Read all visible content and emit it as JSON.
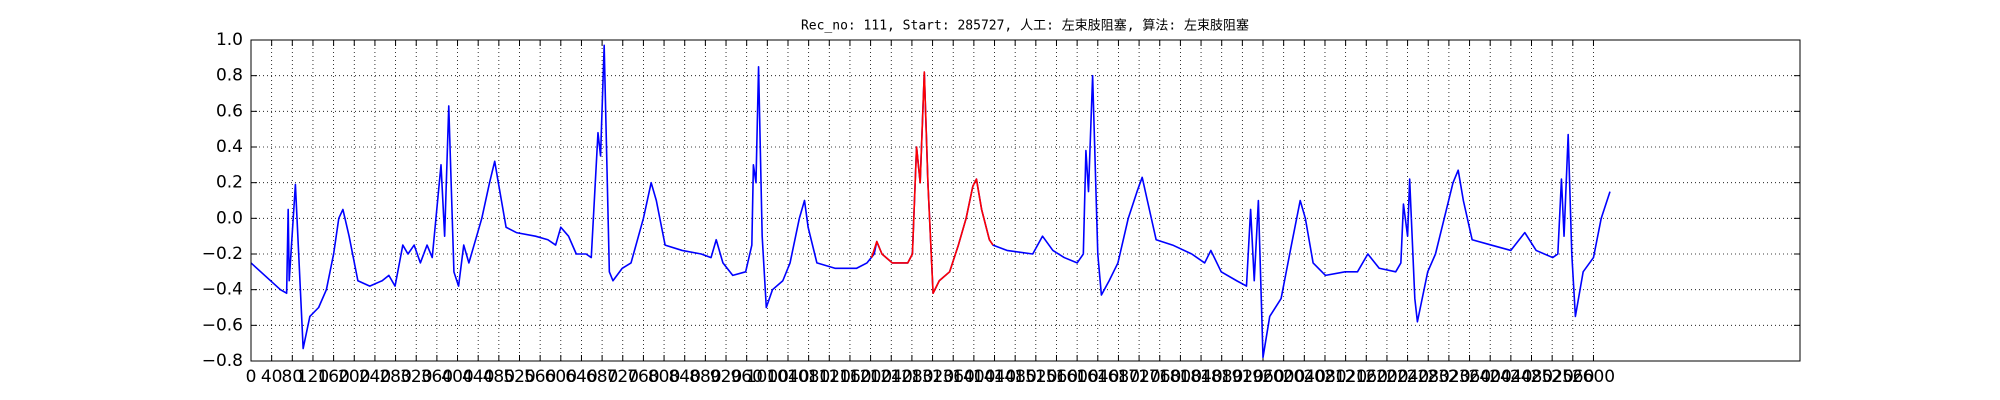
{
  "chart_data": {
    "type": "line",
    "title": "Rec_no: 111, Start: 285727, 人工: 左束肢阻塞, 算法: 左束肢阻塞",
    "xlim": [
      0,
      3000
    ],
    "ylim": [
      -0.8,
      1.0
    ],
    "xticks": [
      0,
      40,
      80,
      120,
      160,
      200,
      240,
      280,
      320,
      360,
      400,
      440,
      480,
      520,
      560,
      600,
      640,
      680,
      720,
      760,
      800,
      840,
      880,
      920,
      960,
      1000,
      1040,
      1080,
      1120,
      1160,
      1200,
      1240,
      1280,
      1320,
      1360,
      1400,
      1440,
      1480,
      1520,
      1560,
      1600,
      1640,
      1680,
      1720,
      1760,
      1800,
      1840,
      1880,
      1920,
      1960,
      2000,
      2040,
      2080,
      2120,
      2160,
      2200,
      2240,
      2280,
      2320,
      2360,
      2400,
      2440,
      2480,
      2520,
      2560,
      2600
    ],
    "yticks": [
      {
        "value": -0.8,
        "label": "−0.8"
      },
      {
        "value": -0.6,
        "label": "−0.6"
      },
      {
        "value": -0.4,
        "label": "−0.4"
      },
      {
        "value": -0.2,
        "label": "−0.2"
      },
      {
        "value": 0,
        "label": "0.0"
      },
      0.2,
      0.4,
      0.6,
      0.8,
      {
        "value": 1,
        "label": "1.0"
      }
    ],
    "grid": true,
    "series": [
      {
        "color": "#0000ff",
        "x": [
          0,
          57,
          69,
          72,
          74,
          86,
          101,
          114,
          131,
          146,
          160,
          170,
          178,
          190,
          207,
          230,
          254,
          267,
          279,
          294,
          304,
          316,
          328,
          341,
          351,
          368,
          375,
          383,
          393,
          402,
          412,
          422,
          437,
          447,
          462,
          472,
          479,
          494,
          514,
          551,
          575,
          590,
          600,
          615,
          630,
          649,
          659,
          672,
          677,
          684,
          694,
          701,
          719,
          736,
          760,
          775,
          785,
          802,
          835,
          872,
          891,
          901,
          914,
          933,
          958,
          970,
          973,
          978,
          983,
          990,
          998,
          1010,
          1030,
          1044,
          1062,
          1072,
          1079,
          1096,
          1131,
          1173,
          1193,
          1207,
          1212,
          1222,
          1242,
          1272,
          1281,
          1289,
          1296,
          1304,
          1311,
          1321,
          1333,
          1353,
          1370,
          1385,
          1398,
          1405,
          1415,
          1430,
          1437,
          1464,
          1514,
          1533,
          1553,
          1575,
          1600,
          1612,
          1617,
          1622,
          1630,
          1640,
          1647,
          1662,
          1679,
          1699,
          1716,
          1726,
          1736,
          1753,
          1785,
          1822,
          1847,
          1859,
          1879,
          1909,
          1928,
          1936,
          1943,
          1951,
          1960,
          1973,
          1995,
          2015,
          2032,
          2042,
          2057,
          2081,
          2119,
          2143,
          2163,
          2185,
          2217,
          2227,
          2232,
          2240,
          2244,
          2254,
          2259,
          2279,
          2294,
          2311,
          2328,
          2338,
          2348,
          2365,
          2402,
          2440,
          2467,
          2489,
          2521,
          2531,
          2538,
          2543,
          2551,
          2558,
          2565,
          2580,
          2600,
          2615,
          2632
        ],
        "values": [
          -0.25,
          -0.4,
          -0.42,
          0.05,
          -0.35,
          0.19,
          -0.73,
          -0.55,
          -0.5,
          -0.4,
          -0.2,
          0.0,
          0.05,
          -0.1,
          -0.35,
          -0.38,
          -0.35,
          -0.32,
          -0.38,
          -0.15,
          -0.2,
          -0.15,
          -0.25,
          -0.15,
          -0.22,
          0.3,
          -0.1,
          0.63,
          -0.3,
          -0.38,
          -0.15,
          -0.25,
          -0.1,
          0.0,
          0.2,
          0.32,
          0.2,
          -0.05,
          -0.08,
          -0.1,
          -0.12,
          -0.15,
          -0.05,
          -0.1,
          -0.2,
          -0.2,
          -0.22,
          0.48,
          0.35,
          0.97,
          -0.3,
          -0.35,
          -0.28,
          -0.25,
          0.0,
          0.2,
          0.1,
          -0.15,
          -0.18,
          -0.2,
          -0.22,
          -0.12,
          -0.25,
          -0.32,
          -0.3,
          -0.15,
          0.3,
          0.2,
          0.85,
          -0.1,
          -0.5,
          -0.4,
          -0.35,
          -0.25,
          0.0,
          0.1,
          -0.05,
          -0.25,
          -0.28,
          -0.28,
          -0.25,
          -0.2,
          -0.13,
          -0.2,
          -0.25,
          -0.25,
          -0.2,
          0.4,
          0.2,
          0.82,
          0.2,
          -0.42,
          -0.35,
          -0.3,
          -0.15,
          0.0,
          0.18,
          0.22,
          0.05,
          -0.12,
          -0.15,
          -0.18,
          -0.2,
          -0.1,
          -0.18,
          -0.22,
          -0.25,
          -0.2,
          0.38,
          0.15,
          0.8,
          -0.2,
          -0.43,
          -0.35,
          -0.25,
          0.0,
          0.15,
          0.23,
          0.1,
          -0.12,
          -0.15,
          -0.2,
          -0.25,
          -0.18,
          -0.3,
          -0.35,
          -0.38,
          0.05,
          -0.35,
          0.1,
          -0.78,
          -0.55,
          -0.45,
          -0.15,
          0.1,
          0.0,
          -0.25,
          -0.32,
          -0.3,
          -0.3,
          -0.2,
          -0.28,
          -0.3,
          -0.25,
          0.08,
          -0.1,
          0.22,
          -0.45,
          -0.58,
          -0.3,
          -0.2,
          0.0,
          0.2,
          0.27,
          0.1,
          -0.12,
          -0.15,
          -0.18,
          -0.08,
          -0.18,
          -0.22,
          -0.2,
          0.22,
          -0.1,
          0.47,
          -0.2,
          -0.55,
          -0.3,
          -0.22,
          0.0,
          0.15
        ]
      },
      {
        "color": "#ff0000",
        "x": [
          1202,
          1212,
          1222,
          1242,
          1272,
          1281,
          1289,
          1296,
          1304,
          1311,
          1321,
          1333,
          1353,
          1370,
          1385,
          1398,
          1405,
          1415,
          1430,
          1437
        ],
        "values": [
          -0.22,
          -0.13,
          -0.2,
          -0.25,
          -0.25,
          -0.2,
          0.4,
          0.2,
          0.82,
          0.2,
          -0.42,
          -0.35,
          -0.3,
          -0.15,
          0.0,
          0.18,
          0.22,
          0.05,
          -0.12,
          -0.15
        ]
      }
    ]
  }
}
